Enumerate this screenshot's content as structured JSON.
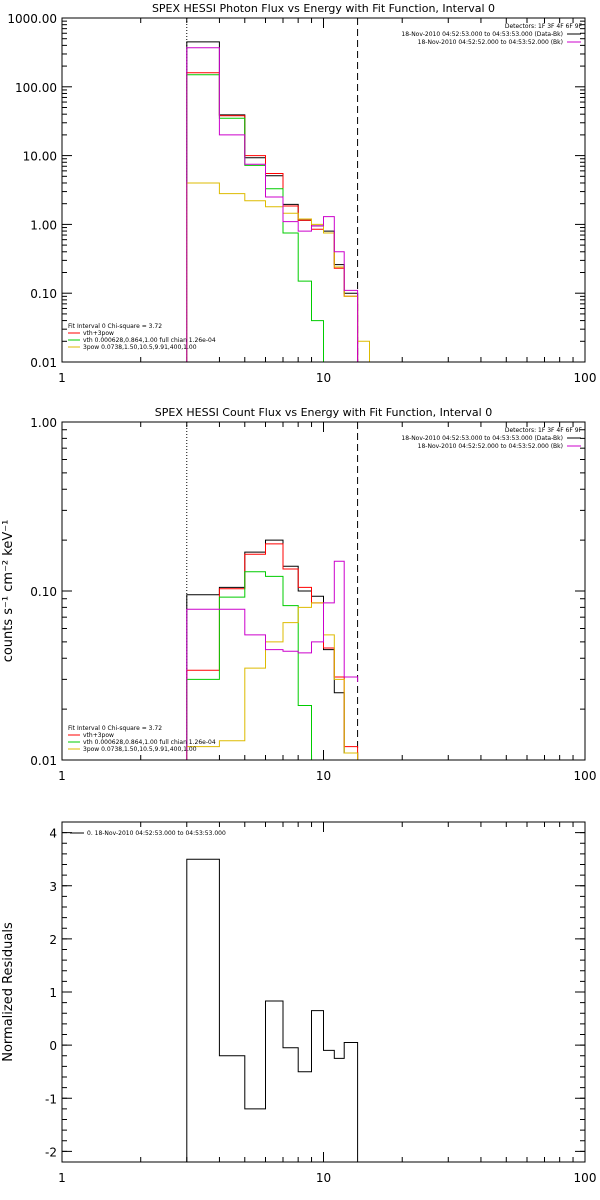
{
  "chart_data": [
    {
      "type": "line",
      "title": "SPEX HESSI Photon Flux vs Energy with Fit Function, Interval 0",
      "xlabel": "",
      "ylabel": "",
      "x_scale": "log",
      "y_scale": "log",
      "xlim": [
        1,
        100
      ],
      "ylim": [
        0.01,
        1000
      ],
      "x_tick_labels": [
        "1",
        "10",
        "100"
      ],
      "y_tick_labels": [
        "0.01",
        "0.10",
        "1.00",
        "10.00",
        "100.00",
        "1000.00"
      ],
      "vlines": [
        {
          "x": 3.0,
          "style": "dotted"
        },
        {
          "x": 13.5,
          "style": "dashed"
        }
      ],
      "info_top": {
        "detectors": "Detectors: 1F 3F 4F 6F 9F",
        "entries": [
          {
            "label": "18-Nov-2010 04:52:53.000 to 04:53:53.000 (Data-Bk)",
            "color": "#000000"
          },
          {
            "label": "18-Nov-2010 04:52:52.000 to 04:53:52.000 (Bk)",
            "color": "#cc00cc"
          }
        ]
      },
      "info_bottom": {
        "header": "Fit Interval 0   Chi-square = 3.72",
        "entries": [
          {
            "label": "vth+3pow",
            "color": "#ff0000"
          },
          {
            "label": "vth 0.000628,0.864,1.00  full chian 1.26e-04",
            "color": "#00cc00"
          },
          {
            "label": "3pow 0.0738,1.50,10.5,9.91,400,1.00",
            "color": "#ddbb00"
          }
        ]
      },
      "bin_edges": [
        3.0,
        4.0,
        5.0,
        6.0,
        7.0,
        8.0,
        9.0,
        10.0,
        11.0,
        12.0,
        13.5,
        15.0,
        16.5
      ],
      "series": [
        {
          "color": "#000000",
          "values": [
            450,
            39,
            9.3,
            5.1,
            1.95,
            1.15,
            0.95,
            0.8,
            0.26,
            0.1
          ]
        },
        {
          "color": "#ff0000",
          "values": [
            160,
            38,
            10,
            5.5,
            1.85,
            1.15,
            0.85,
            0.75,
            0.23,
            0.09
          ]
        },
        {
          "color": "#00cc00",
          "values": [
            150,
            35,
            7.2,
            3.3,
            0.75,
            0.15,
            0.04,
            0.005
          ]
        },
        {
          "color": "#ddbb00",
          "values": [
            4.0,
            2.8,
            2.2,
            1.8,
            1.45,
            1.2,
            1.0,
            0.75,
            0.24,
            0.09,
            0.02,
            0.01
          ]
        },
        {
          "color": "#cc00cc",
          "values": [
            370,
            20,
            7.5,
            2.5,
            1.1,
            0.8,
            0.95,
            1.3,
            0.4,
            0.11
          ]
        }
      ]
    },
    {
      "type": "line",
      "title": "SPEX HESSI Count Flux vs Energy with Fit Function, Interval 0",
      "xlabel": "",
      "ylabel": "counts s⁻¹ cm⁻² keV⁻¹",
      "x_scale": "log",
      "y_scale": "log",
      "xlim": [
        1,
        100
      ],
      "ylim": [
        0.01,
        1.0
      ],
      "x_tick_labels": [
        "1",
        "10",
        "100"
      ],
      "y_tick_labels": [
        "0.01",
        "0.10",
        "1.00"
      ],
      "vlines": [
        {
          "x": 3.0,
          "style": "dotted"
        },
        {
          "x": 13.5,
          "style": "dashed"
        }
      ],
      "info_top": {
        "detectors": "Detectors: 1F 3F 4F 6F 9F",
        "entries": [
          {
            "label": "18-Nov-2010 04:52:53.000 to 04:53:53.000 (Data-Bk)",
            "color": "#000000"
          },
          {
            "label": "18-Nov-2010 04:52:52.000 to 04:53:52.000 (Bk)",
            "color": "#cc00cc"
          }
        ]
      },
      "info_bottom": {
        "header": "Fit Interval 0   Chi-square = 3.72",
        "entries": [
          {
            "label": "vth+3pow",
            "color": "#ff0000"
          },
          {
            "label": "vth 0.000628,0.864,1.00  full chian 1.26e-04",
            "color": "#00cc00"
          },
          {
            "label": "3pow 0.0738,1.50,10.5,9.91,400,1.00",
            "color": "#ddbb00"
          }
        ]
      },
      "bin_edges": [
        3.0,
        4.0,
        5.0,
        6.0,
        7.0,
        8.0,
        9.0,
        10.0,
        11.0,
        12.0,
        13.5
      ],
      "series": [
        {
          "color": "#000000",
          "values": [
            0.095,
            0.105,
            0.17,
            0.2,
            0.14,
            0.1,
            0.093,
            0.045,
            0.025,
            0.011
          ]
        },
        {
          "color": "#ff0000",
          "values": [
            0.034,
            0.103,
            0.165,
            0.19,
            0.135,
            0.105,
            0.085,
            0.046,
            0.031,
            0.012
          ]
        },
        {
          "color": "#00cc00",
          "values": [
            0.03,
            0.092,
            0.13,
            0.122,
            0.082,
            0.021,
            0.006
          ]
        },
        {
          "color": "#ddbb00",
          "values": [
            0.012,
            0.013,
            0.035,
            0.05,
            0.065,
            0.08,
            0.085,
            0.055,
            0.03,
            0.011
          ]
        },
        {
          "color": "#cc00cc",
          "values": [
            0.078,
            0.078,
            0.055,
            0.045,
            0.044,
            0.043,
            0.05,
            0.085,
            0.15,
            0.031,
            0.029
          ]
        }
      ]
    },
    {
      "type": "line",
      "title": "",
      "xlabel": "",
      "ylabel": "Normalized Residuals",
      "x_scale": "log",
      "y_scale": "linear",
      "xlim": [
        1,
        100
      ],
      "ylim": [
        -2.2,
        4.2
      ],
      "x_tick_labels": [
        "1",
        "10",
        "100"
      ],
      "y_tick_labels": [
        "-2",
        "-1",
        "0",
        "1",
        "2",
        "3",
        "4"
      ],
      "legend": {
        "label": "0. 18-Nov-2010 04:52:53.000 to 04:53:53.000",
        "color": "#000000"
      },
      "bin_edges": [
        3.0,
        4.0,
        5.0,
        6.0,
        7.0,
        8.0,
        9.0,
        10.0,
        11.0,
        12.0,
        13.5
      ],
      "series": [
        {
          "color": "#000000",
          "values": [
            3.5,
            -0.2,
            -1.2,
            0.83,
            -0.05,
            -0.5,
            0.65,
            -0.1,
            -0.25,
            0.05
          ]
        }
      ]
    }
  ]
}
